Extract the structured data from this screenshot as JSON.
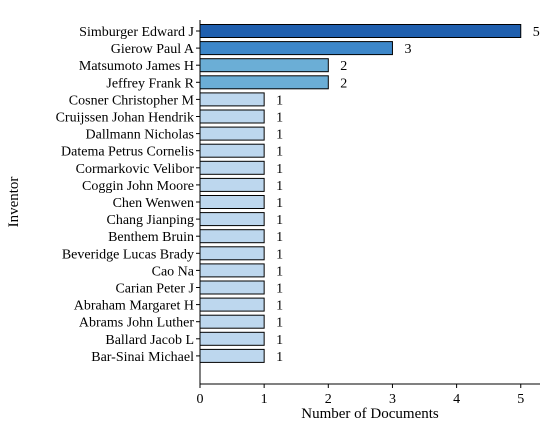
{
  "chart_data": {
    "type": "bar",
    "orientation": "horizontal",
    "title": "",
    "xlabel": "Number of Documents",
    "ylabel": "Inventor",
    "xlim": [
      0,
      5.3
    ],
    "xticks": [
      0,
      1,
      2,
      3,
      4,
      5
    ],
    "grid": false,
    "categories": [
      "Simburger Edward J",
      "Gierow Paul A",
      "Matsumoto James H",
      "Jeffrey Frank R",
      "Cosner Christopher M",
      "Cruijssen Johan Hendrik",
      "Dallmann Nicholas",
      "Datema Petrus Cornelis",
      "Cormarkovic Velibor",
      "Coggin John Moore",
      "Chen Wenwen",
      "Chang Jianping",
      "Benthem Bruin",
      "Beveridge Lucas Brady",
      "Cao Na",
      "Carian Peter J",
      "Abraham Margaret H",
      "Abrams John Luther",
      "Ballard Jacob L",
      "Bar-Sinai Michael"
    ],
    "values": [
      5,
      3,
      2,
      2,
      1,
      1,
      1,
      1,
      1,
      1,
      1,
      1,
      1,
      1,
      1,
      1,
      1,
      1,
      1,
      1
    ],
    "colors": {
      "5": "#1f5fae",
      "3": "#3d87c9",
      "2": "#6baed6",
      "1": "#bdd7ee"
    }
  }
}
